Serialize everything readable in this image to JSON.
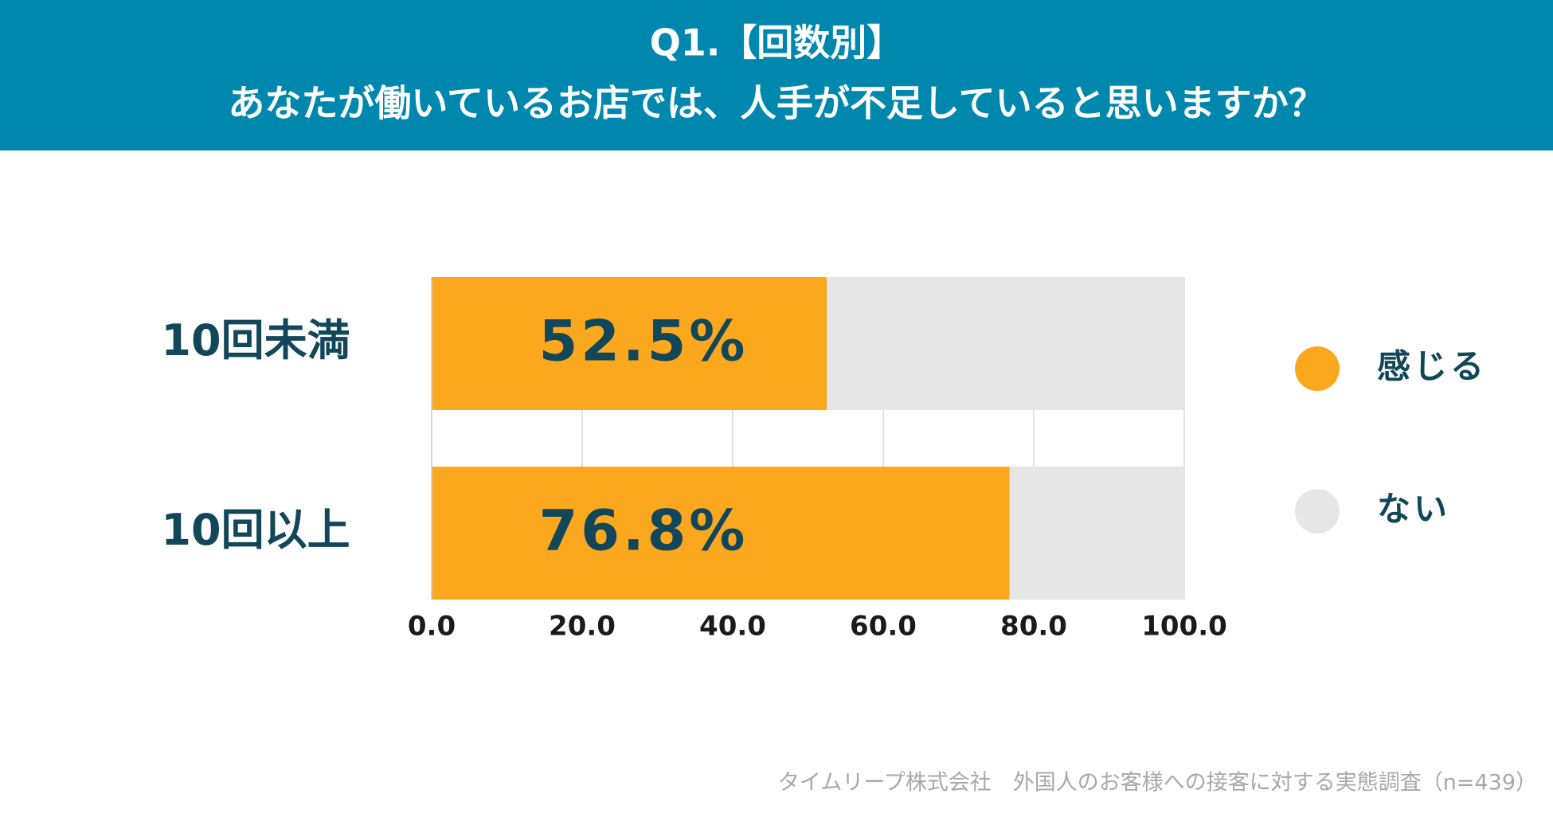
{
  "chart_data": {
    "type": "stacked-bar-horizontal",
    "title": "Q1.【回数別】",
    "subtitle": "あなたが働いているお店では、人手が不足していると思いますか？",
    "categories": [
      "10回未満",
      "10回以上"
    ],
    "series": [
      {
        "name": "感じる",
        "color": "#fba81f",
        "values": [
          52.5,
          76.8
        ],
        "value_labels": [
          "52.5%",
          "76.8%"
        ]
      },
      {
        "name": "ない",
        "color": "#e6e6e6",
        "values": [
          47.5,
          23.2
        ]
      }
    ],
    "xlim": [
      0,
      100
    ],
    "xticks": [
      {
        "value": 0,
        "label": "0.0"
      },
      {
        "value": 20,
        "label": "20.0"
      },
      {
        "value": 40,
        "label": "40.0"
      },
      {
        "value": 60,
        "label": "60.0"
      },
      {
        "value": 80,
        "label": "80.0"
      },
      {
        "value": 100,
        "label": "100.0"
      }
    ],
    "grid": true,
    "legend": "right",
    "source": "タイムリープ株式会社　外国人のお客様への接客に対する実態調査（n=439）"
  }
}
